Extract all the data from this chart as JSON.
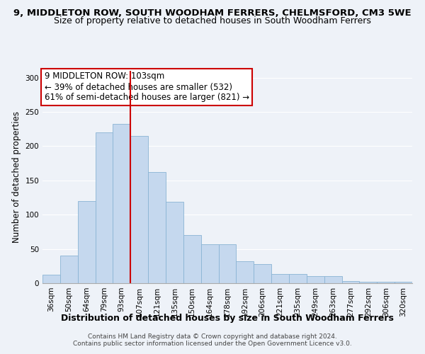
{
  "title": "9, MIDDLETON ROW, SOUTH WOODHAM FERRERS, CHELMSFORD, CM3 5WE",
  "subtitle": "Size of property relative to detached houses in South Woodham Ferrers",
  "xlabel": "Distribution of detached houses by size in South Woodham Ferrers",
  "ylabel": "Number of detached properties",
  "bar_labels": [
    "36sqm",
    "50sqm",
    "64sqm",
    "79sqm",
    "93sqm",
    "107sqm",
    "121sqm",
    "135sqm",
    "150sqm",
    "164sqm",
    "178sqm",
    "192sqm",
    "206sqm",
    "221sqm",
    "235sqm",
    "249sqm",
    "263sqm",
    "277sqm",
    "292sqm",
    "306sqm",
    "320sqm"
  ],
  "bar_values": [
    12,
    40,
    120,
    220,
    232,
    215,
    162,
    119,
    70,
    57,
    57,
    32,
    28,
    13,
    13,
    10,
    10,
    3,
    2,
    2,
    2
  ],
  "bar_color": "#c5d8ee",
  "bar_edge_color": "#8ab4d4",
  "vline_x_idx": 5,
  "vline_color": "#cc0000",
  "annotation_line1": "9 MIDDLETON ROW: 103sqm",
  "annotation_line2": "← 39% of detached houses are smaller (532)",
  "annotation_line3": "61% of semi-detached houses are larger (821) →",
  "ylim": [
    0,
    310
  ],
  "yticks": [
    0,
    50,
    100,
    150,
    200,
    250,
    300
  ],
  "footnote": "Contains HM Land Registry data © Crown copyright and database right 2024.\nContains public sector information licensed under the Open Government Licence v3.0.",
  "bg_color": "#eef2f8",
  "grid_color": "#ffffff",
  "title_fontsize": 9.5,
  "subtitle_fontsize": 9,
  "xlabel_fontsize": 9,
  "ylabel_fontsize": 8.5,
  "tick_fontsize": 7.5,
  "annotation_fontsize": 8.5,
  "footnote_fontsize": 6.5
}
